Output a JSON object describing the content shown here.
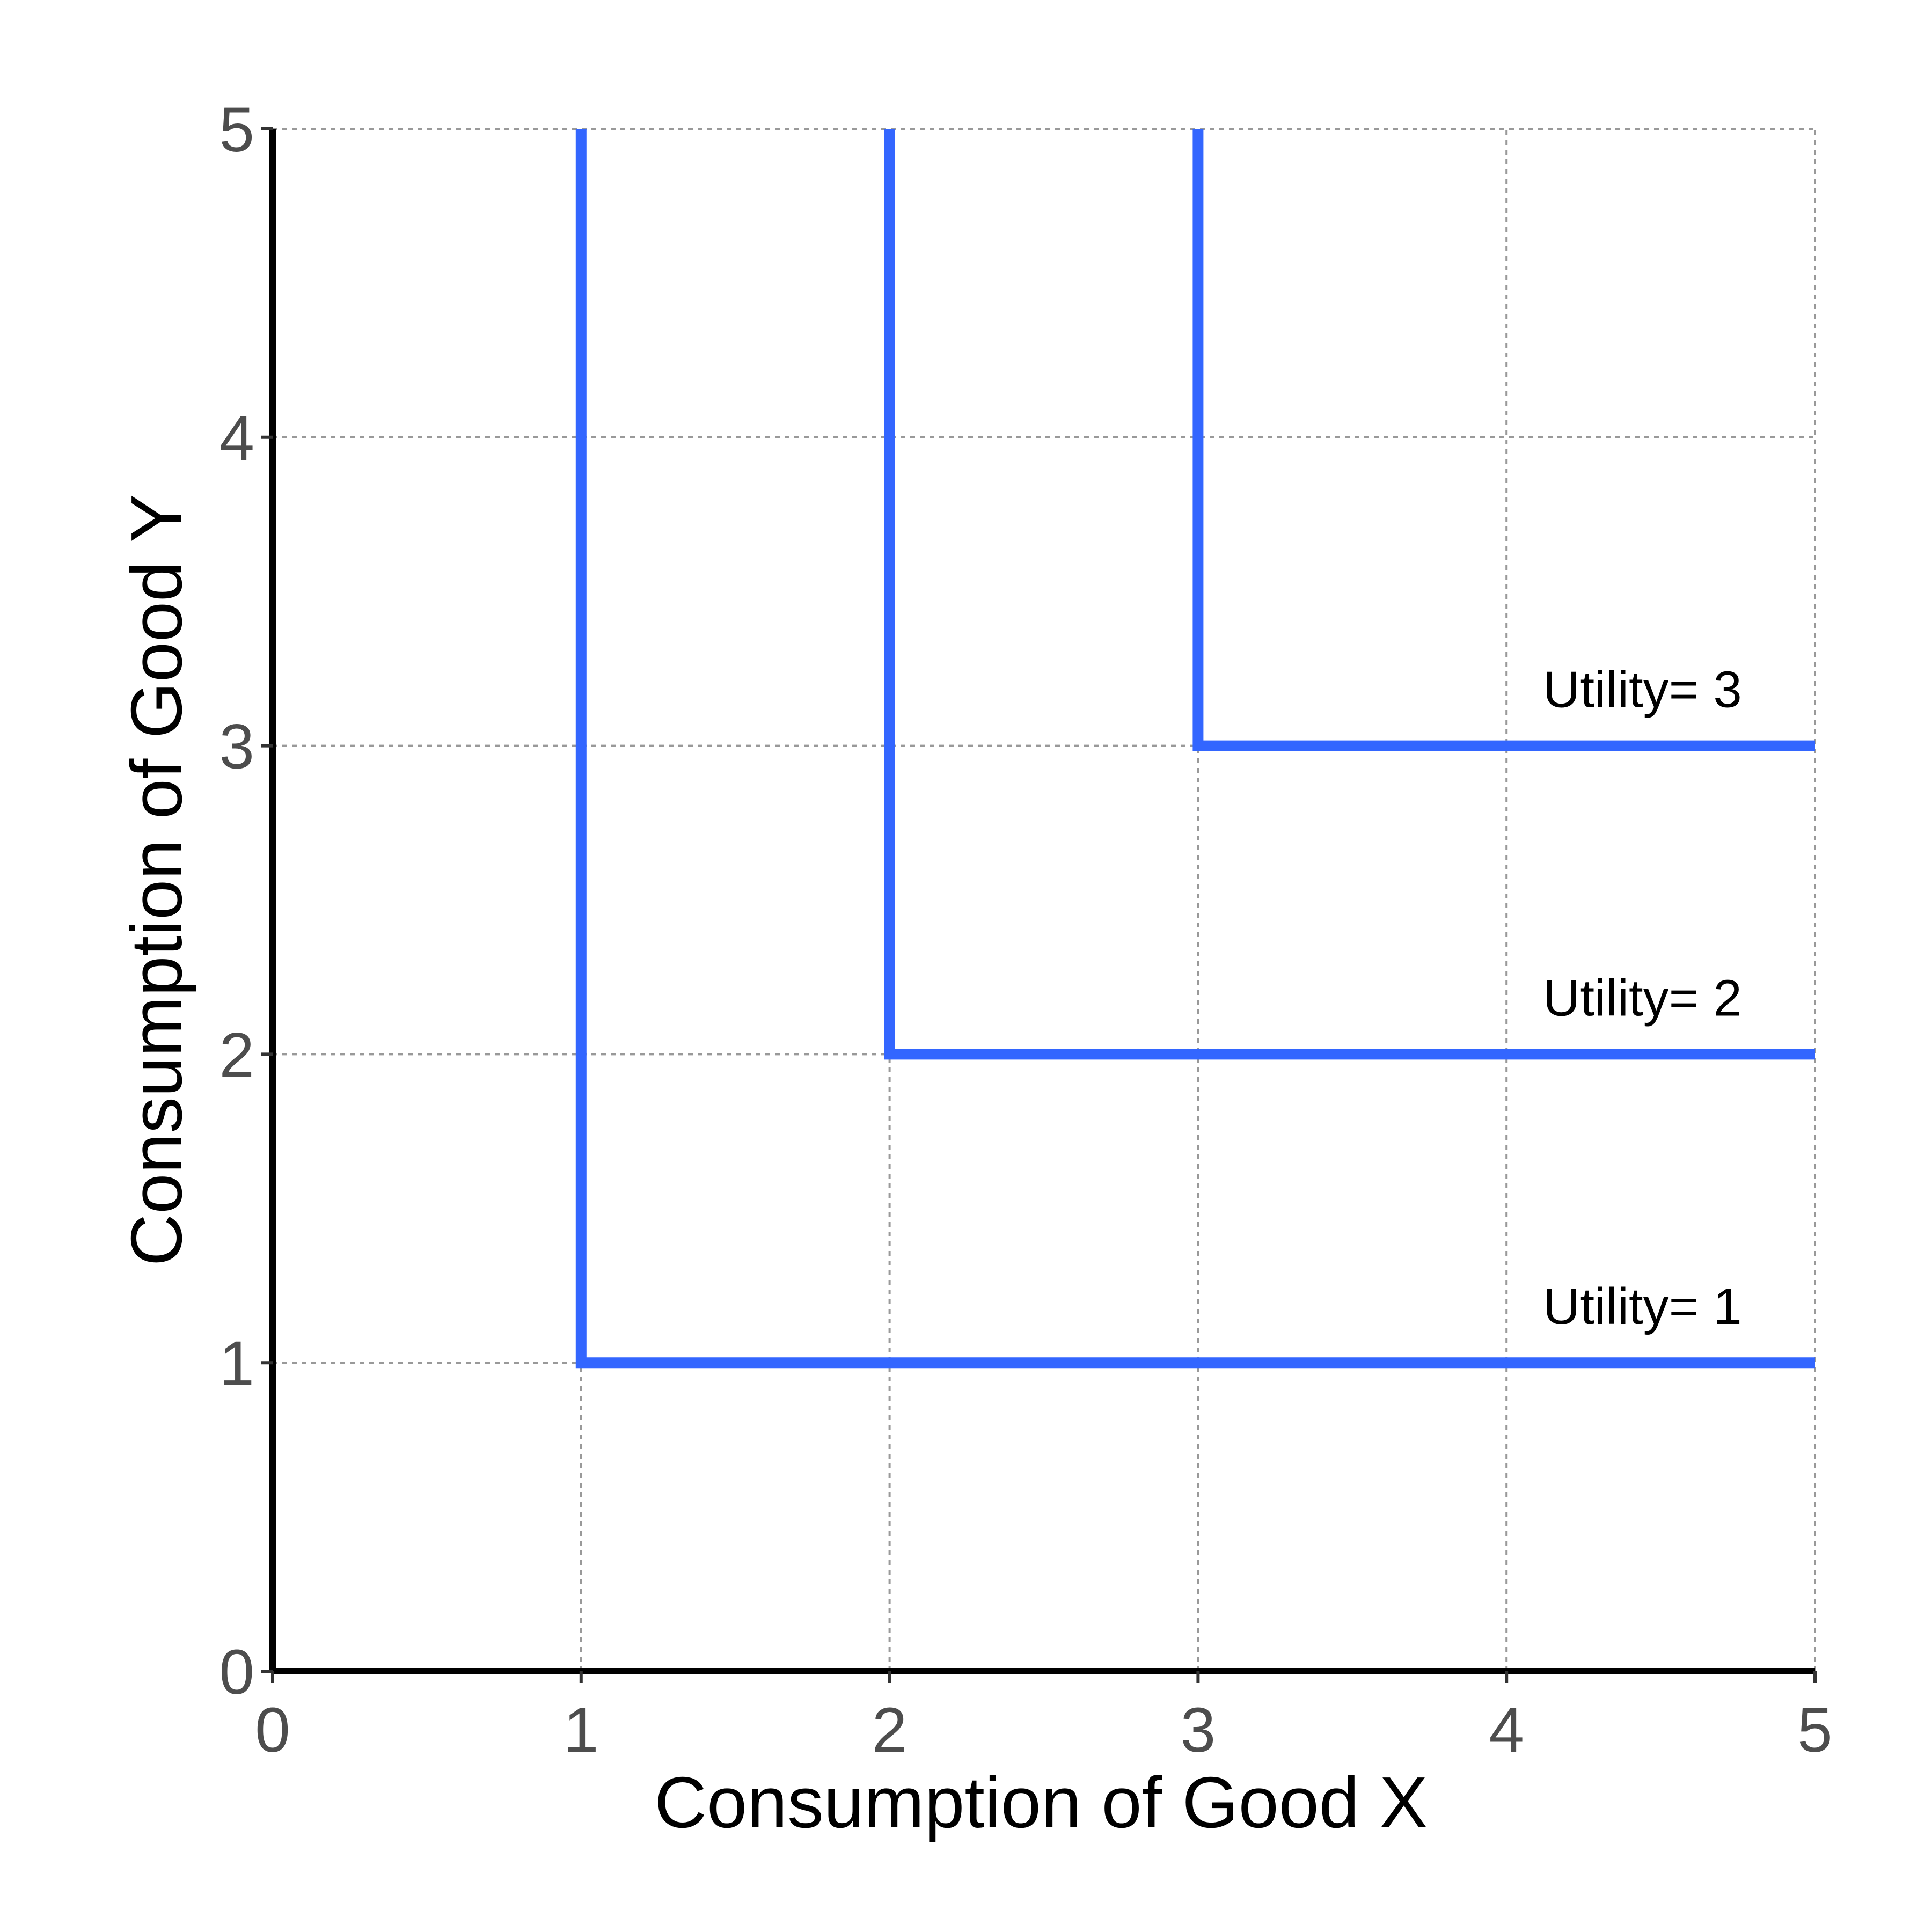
{
  "chart_data": {
    "type": "line",
    "title": "",
    "xlabel": "Consumption of Good X",
    "ylabel": "Consumption of Good Y",
    "xlim": [
      0,
      5
    ],
    "ylim": [
      0,
      5
    ],
    "xticks": [
      "0",
      "1",
      "2",
      "3",
      "4",
      "5"
    ],
    "yticks": [
      "0",
      "1",
      "2",
      "3",
      "4",
      "5"
    ],
    "grid": "dotted, at tick positions up to each curve",
    "series": [
      {
        "label": "Utility= 1",
        "x": [
          1,
          1,
          5
        ],
        "y": [
          5,
          1,
          1
        ]
      },
      {
        "label": "Utility= 2",
        "x": [
          2,
          2,
          5
        ],
        "y": [
          5,
          2,
          2
        ]
      },
      {
        "label": "Utility= 3",
        "x": [
          3,
          3,
          5
        ],
        "y": [
          5,
          3,
          3
        ]
      }
    ],
    "colors": {
      "line": "#3366ff",
      "grid": "#999999",
      "axis": "#000000"
    }
  }
}
